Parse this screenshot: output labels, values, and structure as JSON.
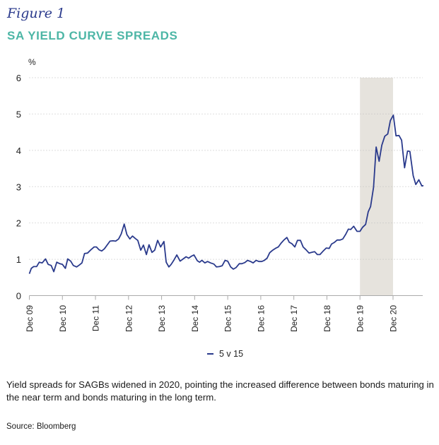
{
  "figure_label": "Figure 1",
  "title": "SA YIELD CURVE SPREADS",
  "caption": "Yield spreads for SAGBs widened in 2020, pointing the increased difference between bonds maturing in the near term and bonds maturing in the long term.",
  "source": "Source: Bloomberg",
  "colors": {
    "line": "#2a3a8c",
    "shade": "#e6e3dd",
    "grid": "#bdbdbd",
    "axis": "#aaaaaa",
    "title": "#4db6a6"
  },
  "chart_data": {
    "type": "line",
    "title": "SA YIELD CURVE SPREADS",
    "ylabel": "%",
    "xlabel": "",
    "ylim": [
      0,
      6
    ],
    "yticks": [
      0,
      1,
      2,
      3,
      4,
      5,
      6
    ],
    "xlim": [
      0,
      11.9
    ],
    "x_unit": "years since Dec 2009",
    "xticks": [
      0,
      1,
      2,
      3,
      4,
      5,
      6,
      7,
      8,
      9,
      10,
      11
    ],
    "xtick_labels": [
      "Dec 09",
      "Dec 10",
      "Dec 11",
      "Dec 12",
      "Dec 13",
      "Dec 14",
      "Dec 15",
      "Dec 16",
      "Dec 17",
      "Dec 18",
      "Dec 19",
      "Dec 20"
    ],
    "grid": "horizontal-dotted",
    "legend": {
      "position": "bottom-center",
      "entries": [
        "5 v 15"
      ]
    },
    "shaded_region": {
      "x_start": 10,
      "x_end": 11,
      "label": "Dec 19 – Dec 20"
    },
    "series": [
      {
        "name": "5 v 15",
        "points": [
          [
            0.0,
            0.6
          ],
          [
            0.06,
            0.75
          ],
          [
            0.13,
            0.8
          ],
          [
            0.22,
            0.8
          ],
          [
            0.3,
            0.92
          ],
          [
            0.39,
            0.9
          ],
          [
            0.49,
            1.01
          ],
          [
            0.57,
            0.86
          ],
          [
            0.66,
            0.83
          ],
          [
            0.74,
            0.66
          ],
          [
            0.83,
            0.92
          ],
          [
            0.92,
            0.88
          ],
          [
            1.0,
            0.86
          ],
          [
            1.09,
            0.75
          ],
          [
            1.16,
            1.01
          ],
          [
            1.25,
            0.95
          ],
          [
            1.33,
            0.83
          ],
          [
            1.43,
            0.79
          ],
          [
            1.51,
            0.84
          ],
          [
            1.59,
            0.9
          ],
          [
            1.67,
            1.16
          ],
          [
            1.76,
            1.17
          ],
          [
            1.86,
            1.26
          ],
          [
            1.96,
            1.34
          ],
          [
            2.03,
            1.34
          ],
          [
            2.11,
            1.26
          ],
          [
            2.19,
            1.23
          ],
          [
            2.27,
            1.29
          ],
          [
            2.44,
            1.5
          ],
          [
            2.53,
            1.51
          ],
          [
            2.61,
            1.5
          ],
          [
            2.7,
            1.56
          ],
          [
            2.78,
            1.7
          ],
          [
            2.87,
            1.97
          ],
          [
            2.95,
            1.68
          ],
          [
            3.04,
            1.56
          ],
          [
            3.12,
            1.64
          ],
          [
            3.21,
            1.57
          ],
          [
            3.28,
            1.52
          ],
          [
            3.37,
            1.25
          ],
          [
            3.45,
            1.39
          ],
          [
            3.54,
            1.13
          ],
          [
            3.62,
            1.4
          ],
          [
            3.71,
            1.19
          ],
          [
            3.79,
            1.25
          ],
          [
            3.88,
            1.52
          ],
          [
            3.97,
            1.34
          ],
          [
            4.07,
            1.49
          ],
          [
            4.14,
            0.92
          ],
          [
            4.22,
            0.79
          ],
          [
            4.29,
            0.86
          ],
          [
            4.38,
            0.99
          ],
          [
            4.46,
            1.12
          ],
          [
            4.56,
            0.95
          ],
          [
            4.65,
            1.01
          ],
          [
            4.74,
            1.07
          ],
          [
            4.82,
            1.03
          ],
          [
            4.91,
            1.09
          ],
          [
            4.98,
            1.12
          ],
          [
            5.08,
            0.96
          ],
          [
            5.15,
            0.92
          ],
          [
            5.22,
            0.97
          ],
          [
            5.31,
            0.9
          ],
          [
            5.39,
            0.94
          ],
          [
            5.48,
            0.9
          ],
          [
            5.58,
            0.87
          ],
          [
            5.66,
            0.79
          ],
          [
            5.75,
            0.8
          ],
          [
            5.83,
            0.82
          ],
          [
            5.92,
            0.97
          ],
          [
            6.0,
            0.95
          ],
          [
            6.09,
            0.79
          ],
          [
            6.17,
            0.73
          ],
          [
            6.25,
            0.77
          ],
          [
            6.35,
            0.88
          ],
          [
            6.43,
            0.88
          ],
          [
            6.52,
            0.91
          ],
          [
            6.6,
            0.97
          ],
          [
            6.69,
            0.94
          ],
          [
            6.77,
            0.9
          ],
          [
            6.86,
            0.97
          ],
          [
            6.94,
            0.94
          ],
          [
            7.03,
            0.94
          ],
          [
            7.11,
            0.97
          ],
          [
            7.19,
            1.03
          ],
          [
            7.27,
            1.18
          ],
          [
            7.36,
            1.25
          ],
          [
            7.44,
            1.3
          ],
          [
            7.53,
            1.34
          ],
          [
            7.61,
            1.44
          ],
          [
            7.7,
            1.53
          ],
          [
            7.79,
            1.6
          ],
          [
            7.86,
            1.47
          ],
          [
            7.94,
            1.43
          ],
          [
            8.03,
            1.34
          ],
          [
            8.11,
            1.52
          ],
          [
            8.2,
            1.52
          ],
          [
            8.28,
            1.34
          ],
          [
            8.37,
            1.26
          ],
          [
            8.46,
            1.17
          ],
          [
            8.54,
            1.19
          ],
          [
            8.63,
            1.21
          ],
          [
            8.71,
            1.13
          ],
          [
            8.79,
            1.13
          ],
          [
            8.88,
            1.22
          ],
          [
            8.98,
            1.31
          ],
          [
            9.07,
            1.3
          ],
          [
            9.14,
            1.42
          ],
          [
            9.22,
            1.46
          ],
          [
            9.31,
            1.53
          ],
          [
            9.4,
            1.53
          ],
          [
            9.48,
            1.56
          ],
          [
            9.57,
            1.69
          ],
          [
            9.65,
            1.83
          ],
          [
            9.72,
            1.82
          ],
          [
            9.81,
            1.91
          ],
          [
            9.91,
            1.77
          ],
          [
            10.0,
            1.77
          ],
          [
            10.08,
            1.88
          ],
          [
            10.17,
            1.96
          ],
          [
            10.25,
            2.31
          ],
          [
            10.32,
            2.45
          ],
          [
            10.41,
            2.98
          ],
          [
            10.49,
            4.09
          ],
          [
            10.58,
            3.7
          ],
          [
            10.66,
            4.14
          ],
          [
            10.75,
            4.39
          ],
          [
            10.84,
            4.45
          ],
          [
            10.92,
            4.82
          ],
          [
            11.01,
            4.97
          ],
          [
            11.09,
            4.4
          ],
          [
            11.18,
            4.41
          ],
          [
            11.26,
            4.28
          ],
          [
            11.35,
            3.52
          ],
          [
            11.44,
            3.98
          ],
          [
            11.51,
            3.97
          ],
          [
            11.61,
            3.3
          ],
          [
            11.69,
            3.06
          ],
          [
            11.78,
            3.19
          ],
          [
            11.87,
            3.02
          ],
          [
            11.92,
            3.03
          ]
        ]
      }
    ]
  }
}
